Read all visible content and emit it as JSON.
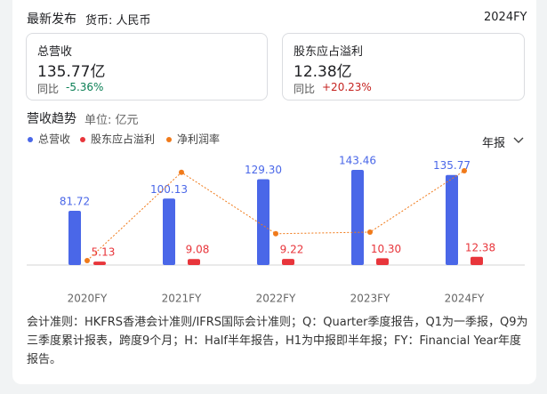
{
  "header": {
    "title": "最新发布",
    "currency": "货币: 人民币",
    "period": "2024FY"
  },
  "metrics": [
    {
      "label": "总营收",
      "value": "135.77亿",
      "change_label": "同比",
      "change": "-5.36%"
    },
    {
      "label": "股东应占溢利",
      "value": "12.38亿",
      "change_label": "同比",
      "change": "+20.23%"
    }
  ],
  "chart_data": {
    "type": "bar",
    "title": "营收趋势",
    "unit": "单位: 亿元",
    "period_selector": "年报",
    "categories": [
      "2020FY",
      "2021FY",
      "2022FY",
      "2023FY",
      "2024FY"
    ],
    "series": [
      {
        "name": "总营收",
        "color": "#4a67e8",
        "values": [
          81.72,
          100.13,
          129.3,
          143.46,
          135.77
        ],
        "value_labels": [
          "81.72",
          "100.13",
          "129.30",
          "143.46",
          "135.77"
        ]
      },
      {
        "name": "股东应占溢利",
        "color": "#e8353b",
        "values": [
          5.13,
          9.08,
          9.22,
          10.3,
          12.38
        ],
        "value_labels": [
          "5.13",
          "9.08",
          "9.22",
          "10.30",
          "12.38"
        ]
      },
      {
        "name": "净利润率",
        "color": "#f07a1a",
        "type": "line",
        "values": [
          6.28,
          9.07,
          7.13,
          7.18,
          9.12
        ]
      }
    ]
  },
  "footnote": "会计准则：HKFRS香港会计准则/IFRS国际会计准则；Q：Quarter季度报告，Q1为一季报，Q9为三季度累计报表，跨度9个月；H：Half半年报告，H1为中报即半年报；FY：Financial Year年度报告。"
}
